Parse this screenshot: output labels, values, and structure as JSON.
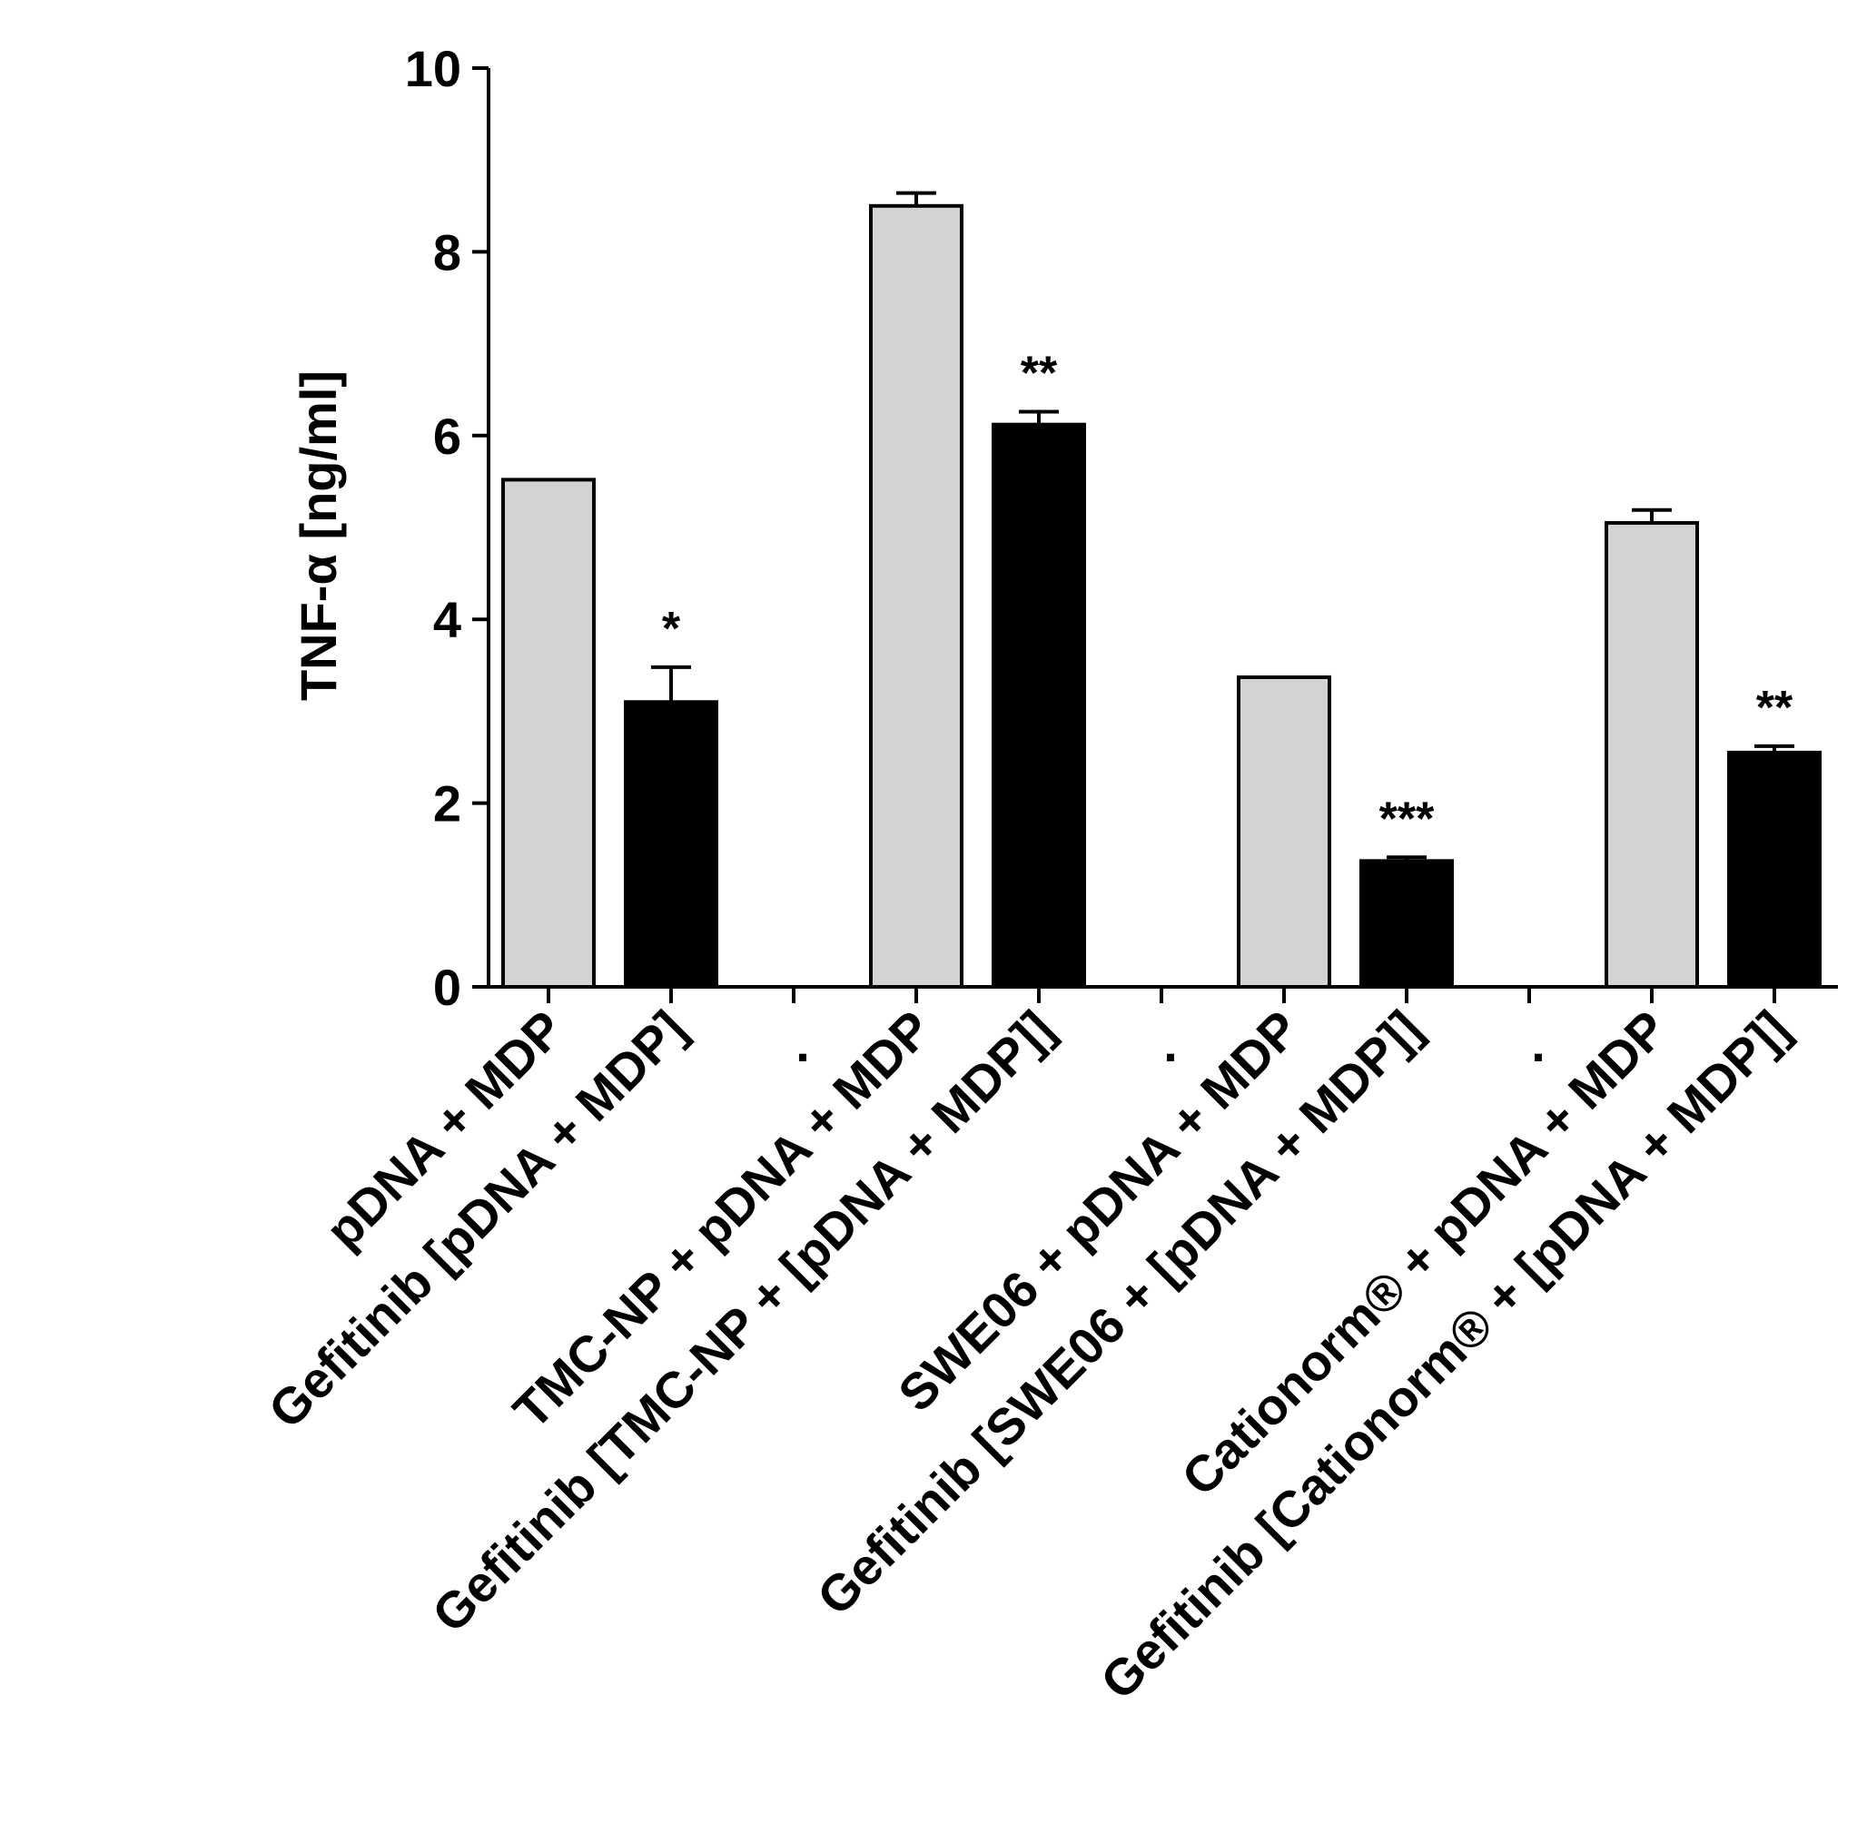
{
  "chart_data": {
    "type": "bar",
    "title": "",
    "xlabel": "",
    "ylabel": "TNF-α [ng/ml]",
    "ylim": [
      0,
      10
    ],
    "yticks": [
      0,
      2,
      4,
      6,
      8,
      10
    ],
    "grid": false,
    "legend": "none",
    "group_separator_label": ".",
    "colors": {
      "control": "#d3d3d3",
      "gefitinib": "#000000",
      "outline": "#000000"
    },
    "bars": [
      {
        "category": "pDNA + MDP",
        "value": 5.52,
        "error": 0.0,
        "color": "control",
        "significance": ""
      },
      {
        "category": "Gefitinib [pDNA + MDP]",
        "value": 3.1,
        "error": 0.38,
        "color": "gefitinib",
        "significance": "*"
      },
      {
        "category": "TMC-NP + pDNA + MDP",
        "value": 8.5,
        "error": 0.14,
        "color": "control",
        "significance": ""
      },
      {
        "category": "Gefitinib [TMC-NP + [pDNA + MDP]]",
        "value": 6.12,
        "error": 0.14,
        "color": "gefitinib",
        "significance": "**"
      },
      {
        "category": "SWE06 + pDNA + MDP",
        "value": 3.37,
        "error": 0.0,
        "color": "control",
        "significance": ""
      },
      {
        "category": "Gefitinib [SWE06 + [pDNA + MDP]]",
        "value": 1.37,
        "error": 0.04,
        "color": "gefitinib",
        "significance": "***"
      },
      {
        "category": "Cationorm® + pDNA + MDP",
        "value": 5.05,
        "error": 0.14,
        "color": "control",
        "significance": ""
      },
      {
        "category": "Gefitinib [Cationorm® + [pDNA + MDP]]",
        "value": 2.55,
        "error": 0.07,
        "color": "gefitinib",
        "significance": "**"
      }
    ]
  }
}
